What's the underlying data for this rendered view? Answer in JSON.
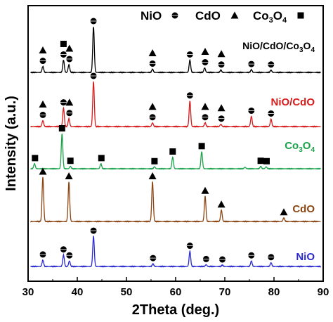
{
  "chart_data": {
    "type": "line",
    "xlabel": "2Theta (deg.)",
    "ylabel": "Intensity (a.u.)",
    "xlim": [
      30,
      90
    ],
    "x_ticks": [
      30,
      40,
      50,
      60,
      70,
      80,
      90
    ],
    "y_ticks_shown": false,
    "grid": false,
    "legend_position": "top",
    "legend": [
      {
        "name": "NiO",
        "marker": "circle"
      },
      {
        "name": "CdO",
        "marker": "triangle"
      },
      {
        "name": "Co3O4",
        "marker": "square"
      }
    ],
    "series": [
      {
        "name": "NiO/CdO/Co3O4",
        "color": "#000000",
        "label_color": "#000000",
        "baseline": 0,
        "peaks": [
          {
            "x": 33.0,
            "h": 0.13
          },
          {
            "x": 37.2,
            "h": 0.27
          },
          {
            "x": 38.3,
            "h": 0.17
          },
          {
            "x": 43.3,
            "h": 1.0
          },
          {
            "x": 55.3,
            "h": 0.07
          },
          {
            "x": 62.9,
            "h": 0.27
          },
          {
            "x": 65.9,
            "h": 0.1
          },
          {
            "x": 69.2,
            "h": 0.05
          },
          {
            "x": 75.4,
            "h": 0.06
          },
          {
            "x": 79.4,
            "h": 0.05
          }
        ],
        "markers": [
          {
            "x": 33.0,
            "types": [
              "triangle",
              "circle"
            ]
          },
          {
            "x": 37.2,
            "types": [
              "square",
              "circle"
            ]
          },
          {
            "x": 38.4,
            "types": [
              "triangle",
              "circle"
            ]
          },
          {
            "x": 43.3,
            "types": [
              "circle"
            ]
          },
          {
            "x": 55.3,
            "types": [
              "triangle",
              "circle"
            ]
          },
          {
            "x": 62.9,
            "types": [
              "circle"
            ]
          },
          {
            "x": 66.0,
            "types": [
              "triangle",
              "circle"
            ]
          },
          {
            "x": 69.3,
            "types": [
              "triangle",
              "circle"
            ]
          },
          {
            "x": 75.4,
            "types": [
              "circle"
            ]
          },
          {
            "x": 79.4,
            "types": [
              "circle"
            ]
          }
        ]
      },
      {
        "name": "NiO/CdO",
        "color": "#d81b1b",
        "label_color": "#d81b1b",
        "baseline": 1,
        "peaks": [
          {
            "x": 33.0,
            "h": 0.13
          },
          {
            "x": 37.2,
            "h": 0.4
          },
          {
            "x": 38.3,
            "h": 0.17
          },
          {
            "x": 43.3,
            "h": 0.97
          },
          {
            "x": 55.3,
            "h": 0.08
          },
          {
            "x": 62.9,
            "h": 0.55
          },
          {
            "x": 66.0,
            "h": 0.08
          },
          {
            "x": 69.2,
            "h": 0.05
          },
          {
            "x": 75.4,
            "h": 0.22
          },
          {
            "x": 79.4,
            "h": 0.16
          }
        ],
        "markers": [
          {
            "x": 33.0,
            "types": [
              "triangle",
              "circle"
            ]
          },
          {
            "x": 37.2,
            "types": [
              "circle"
            ]
          },
          {
            "x": 38.4,
            "types": [
              "triangle",
              "circle"
            ]
          },
          {
            "x": 43.3,
            "types": [
              "circle"
            ]
          },
          {
            "x": 55.3,
            "types": [
              "triangle",
              "circle"
            ]
          },
          {
            "x": 62.9,
            "types": [
              "circle"
            ]
          },
          {
            "x": 66.0,
            "types": [
              "triangle",
              "circle"
            ]
          },
          {
            "x": 69.3,
            "types": [
              "triangle",
              "circle"
            ]
          },
          {
            "x": 75.4,
            "types": [
              "circle"
            ]
          },
          {
            "x": 79.4,
            "types": [
              "circle"
            ]
          }
        ]
      },
      {
        "name": "Co3O4",
        "label_main": "Co",
        "label_sub1": "3",
        "label_mid": "O",
        "label_sub2": "4",
        "color": "#1aa34a",
        "label_color": "#1aa34a",
        "baseline": 2,
        "peaks": [
          {
            "x": 31.3,
            "h": 0.13
          },
          {
            "x": 36.9,
            "h": 0.9
          },
          {
            "x": 38.6,
            "h": 0.06
          },
          {
            "x": 44.8,
            "h": 0.13
          },
          {
            "x": 55.7,
            "h": 0.05
          },
          {
            "x": 59.4,
            "h": 0.3
          },
          {
            "x": 65.3,
            "h": 0.44
          },
          {
            "x": 74.1,
            "h": 0.04
          },
          {
            "x": 77.3,
            "h": 0.06
          },
          {
            "x": 78.4,
            "h": 0.05
          }
        ],
        "markers": [
          {
            "x": 31.4,
            "types": [
              "square"
            ]
          },
          {
            "x": 36.9,
            "types": [
              "square"
            ]
          },
          {
            "x": 38.6,
            "types": [
              "square"
            ]
          },
          {
            "x": 44.9,
            "types": [
              "square"
            ]
          },
          {
            "x": 55.7,
            "types": [
              "square"
            ]
          },
          {
            "x": 59.4,
            "types": [
              "square"
            ]
          },
          {
            "x": 65.3,
            "types": [
              "square"
            ]
          },
          {
            "x": 77.3,
            "types": [
              "square"
            ]
          },
          {
            "x": 78.5,
            "types": [
              "square"
            ]
          }
        ]
      },
      {
        "name": "CdO",
        "color": "#8b4513",
        "label_color": "#8b4513",
        "baseline": 3,
        "peaks": [
          {
            "x": 33.0,
            "h": 0.97
          },
          {
            "x": 38.3,
            "h": 0.87
          },
          {
            "x": 55.3,
            "h": 0.87
          },
          {
            "x": 66.0,
            "h": 0.55
          },
          {
            "x": 69.3,
            "h": 0.25
          },
          {
            "x": 82.0,
            "h": 0.08
          }
        ],
        "markers": [
          {
            "x": 33.0,
            "types": [
              "triangle"
            ]
          },
          {
            "x": 38.3,
            "types": [
              "triangle"
            ]
          },
          {
            "x": 55.3,
            "types": [
              "triangle"
            ]
          },
          {
            "x": 66.0,
            "types": [
              "triangle"
            ]
          },
          {
            "x": 69.3,
            "types": [
              "triangle"
            ]
          },
          {
            "x": 82.0,
            "types": [
              "triangle"
            ]
          }
        ]
      },
      {
        "name": "NiO",
        "color": "#2a2ad0",
        "label_color": "#2a2ad0",
        "baseline": 4,
        "peaks": [
          {
            "x": 33.0,
            "h": 0.14
          },
          {
            "x": 37.2,
            "h": 0.25
          },
          {
            "x": 38.4,
            "h": 0.12
          },
          {
            "x": 43.3,
            "h": 0.66
          },
          {
            "x": 55.4,
            "h": 0.06
          },
          {
            "x": 62.9,
            "h": 0.33
          },
          {
            "x": 66.2,
            "h": 0.04
          },
          {
            "x": 69.5,
            "h": 0.03
          },
          {
            "x": 75.4,
            "h": 0.12
          },
          {
            "x": 79.4,
            "h": 0.08
          }
        ],
        "markers": [
          {
            "x": 33.0,
            "types": [
              "circle"
            ]
          },
          {
            "x": 37.2,
            "types": [
              "circle"
            ]
          },
          {
            "x": 38.4,
            "types": [
              "circle"
            ]
          },
          {
            "x": 43.3,
            "types": [
              "circle"
            ]
          },
          {
            "x": 55.4,
            "types": [
              "circle"
            ]
          },
          {
            "x": 62.9,
            "types": [
              "circle"
            ]
          },
          {
            "x": 66.2,
            "types": [
              "circle"
            ]
          },
          {
            "x": 69.5,
            "types": [
              "circle"
            ]
          },
          {
            "x": 75.4,
            "types": [
              "circle"
            ]
          },
          {
            "x": 79.4,
            "types": [
              "circle"
            ]
          }
        ]
      }
    ]
  }
}
